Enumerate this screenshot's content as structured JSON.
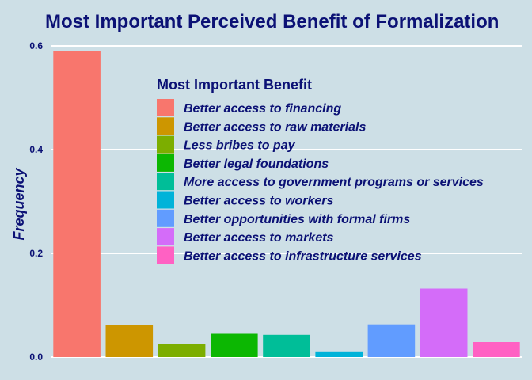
{
  "chart_data": {
    "type": "bar",
    "title": "Most Important Perceived Benefit of Formalization",
    "xlabel": "",
    "ylabel": "Frequency",
    "ylim": [
      0,
      0.6
    ],
    "yticks": [
      "0.0",
      "0.2",
      "0.4",
      "0.6"
    ],
    "ytick_values": [
      0,
      0.2,
      0.4,
      0.6
    ],
    "grid": true,
    "legend": {
      "title": "Most Important Benefit",
      "placement": "inside-top-center"
    },
    "categories": [
      "Better access to financing",
      "Better access to raw materials",
      "Less bribes to pay",
      "Better legal foundations",
      "More access to government programs or services",
      "Better access to workers",
      "Better opportunities with formal firms",
      "Better access to markets",
      "Better access to infrastructure services"
    ],
    "values": [
      0.59,
      0.061,
      0.025,
      0.045,
      0.043,
      0.011,
      0.063,
      0.132,
      0.029
    ],
    "colors": [
      "#f8766d",
      "#cd9600",
      "#7cae00",
      "#0cb702",
      "#00be98",
      "#00b3d9",
      "#619cff",
      "#d46cf9",
      "#ff61c3"
    ]
  }
}
